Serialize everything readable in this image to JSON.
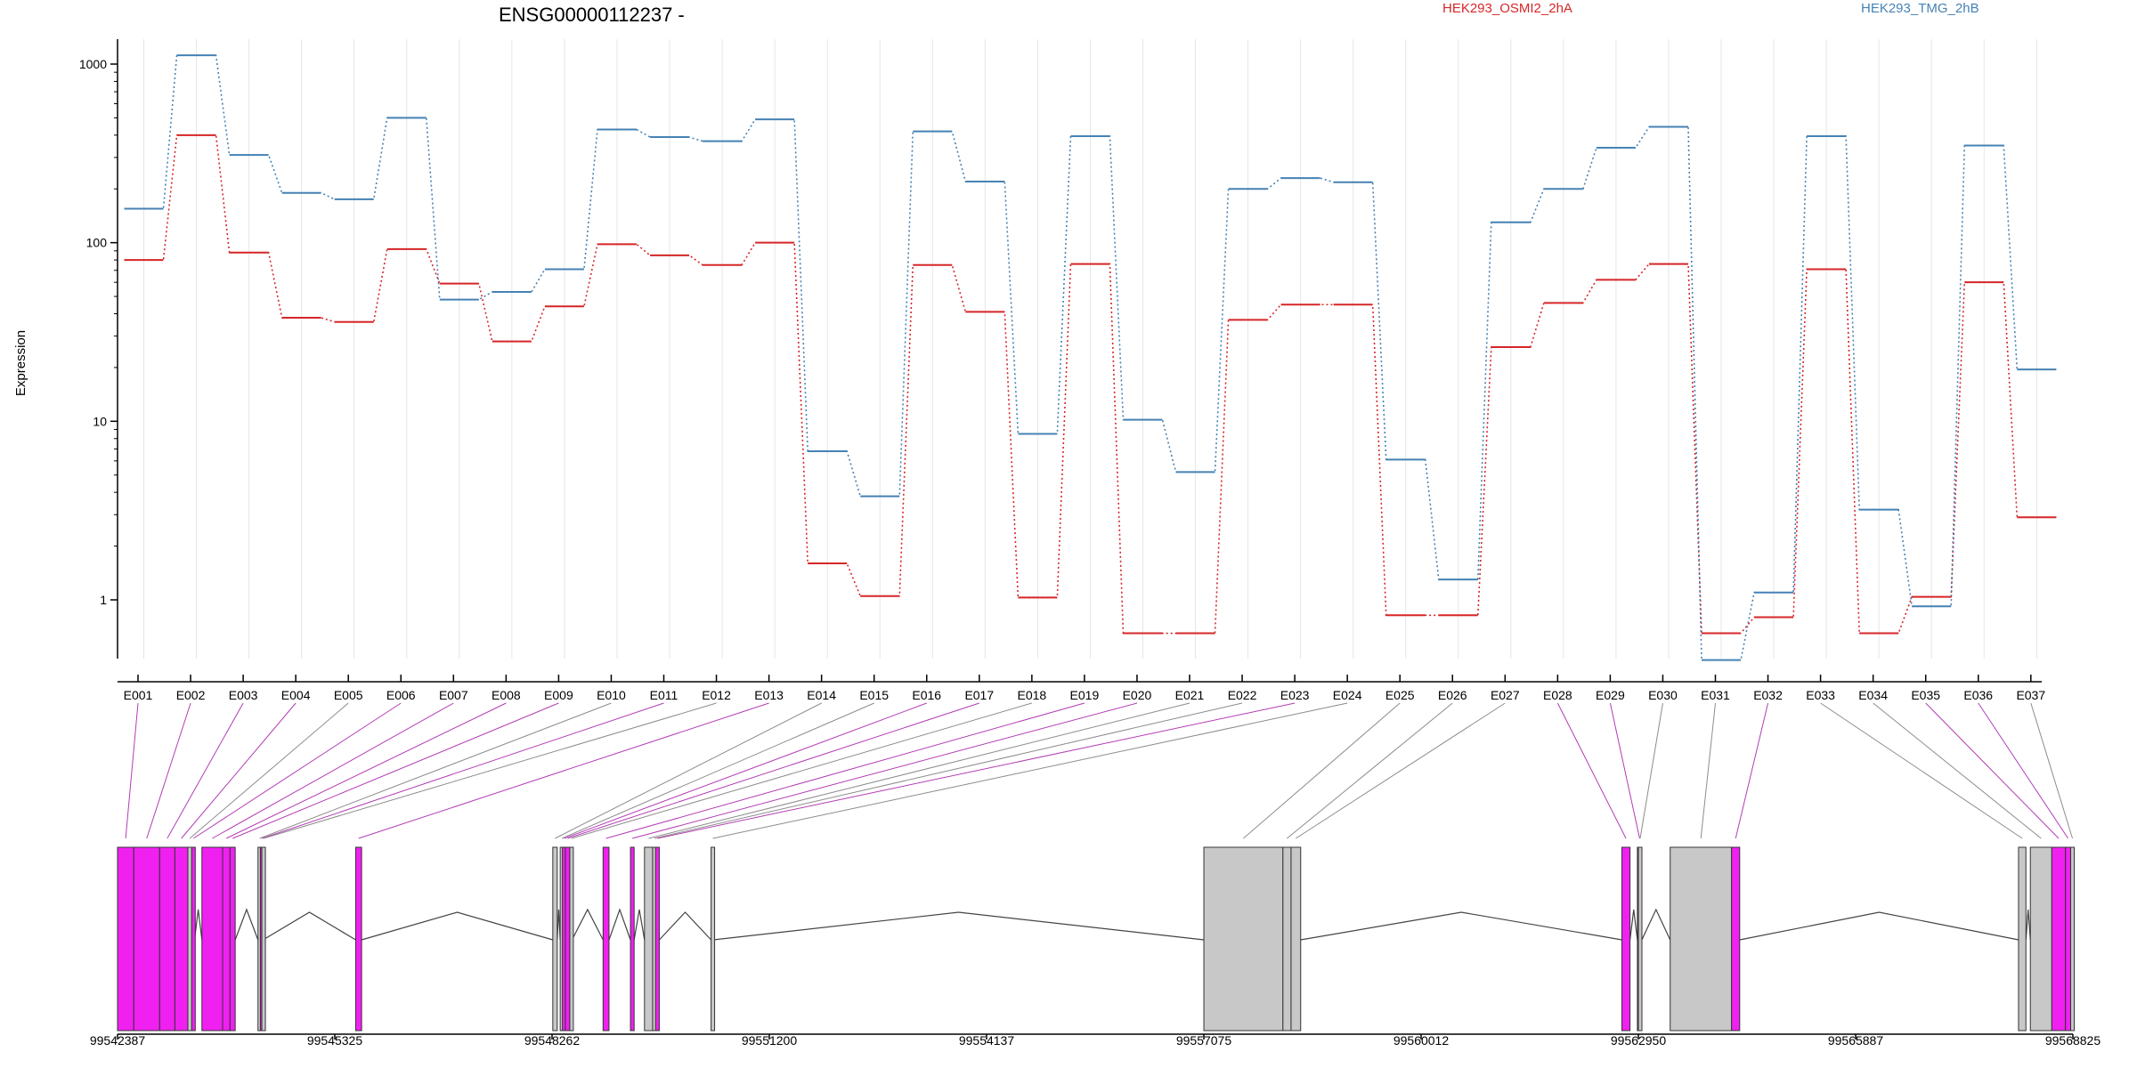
{
  "chart_data": {
    "type": "line",
    "title": "ENSG00000112237 -",
    "ylabel": "Expression",
    "yscale": "log",
    "ylim": [
      0.4,
      1300
    ],
    "yticks": [
      1,
      10,
      100,
      1000
    ],
    "ytick_labels": [
      "1",
      "10",
      "100",
      "1000"
    ],
    "grid": "vertical",
    "legend_position": "top",
    "categories": [
      "E001",
      "E002",
      "E003",
      "E004",
      "E005",
      "E006",
      "E007",
      "E008",
      "E009",
      "E010",
      "E011",
      "E012",
      "E013",
      "E014",
      "E015",
      "E016",
      "E017",
      "E018",
      "E019",
      "E020",
      "E021",
      "E022",
      "E023",
      "E024",
      "E025",
      "E026",
      "E027",
      "E028",
      "E029",
      "E030",
      "E031",
      "E032",
      "E033",
      "E034",
      "E035",
      "E036",
      "E037"
    ],
    "series": [
      {
        "name": "HEK293_OSMI2_2hA",
        "color": "#d62728",
        "values": [
          80,
          400,
          88,
          38,
          36,
          92,
          59,
          28,
          44,
          98,
          85,
          75,
          100,
          1.6,
          1.05,
          75,
          41,
          1.03,
          76,
          0.65,
          0.65,
          37,
          45,
          45,
          0.82,
          0.82,
          26,
          46,
          62,
          76,
          0.65,
          0.8,
          71,
          0.65,
          1.04,
          60,
          2.9
        ]
      },
      {
        "name": "HEK293_TMG_2hB",
        "color": "#4682b4",
        "values": [
          155,
          1120,
          310,
          190,
          175,
          500,
          48,
          53,
          71,
          430,
          390,
          370,
          490,
          6.8,
          3.8,
          420,
          220,
          8.5,
          395,
          10.2,
          5.2,
          200,
          230,
          218,
          6.1,
          1.3,
          130,
          200,
          340,
          445,
          0.46,
          1.1,
          395,
          3.2,
          0.92,
          350,
          19.5
        ]
      }
    ],
    "gene_model": {
      "genomic_ticks": [
        "99542387",
        "99545325",
        "99548262",
        "99551200",
        "99554137",
        "99557075",
        "99560012",
        "99562950",
        "99565887",
        "99568825"
      ],
      "genomic_range": [
        99542387,
        99568825
      ],
      "exon_spans": [
        [
          99542387,
          99542607
        ],
        [
          99542607,
          99542957
        ],
        [
          99542957,
          99543162
        ],
        [
          99543162,
          99543338
        ],
        [
          99543338,
          99543390
        ],
        [
          99543390,
          99543428
        ],
        [
          99543528,
          99543808
        ],
        [
          99543808,
          99543908
        ],
        [
          99543908,
          99543978
        ],
        [
          99544286,
          99544318
        ],
        [
          99544318,
          99544338
        ],
        [
          99544338,
          99544355
        ],
        [
          99545607,
          99545687
        ],
        [
          99548272,
          99548332
        ],
        [
          99548372,
          99548402
        ],
        [
          99548402,
          99548442
        ],
        [
          99548442,
          99548502
        ],
        [
          99548502,
          99548532
        ],
        [
          99548952,
          99549032
        ],
        [
          99549322,
          99549372
        ],
        [
          99549512,
          99549622
        ],
        [
          99549622,
          99549662
        ],
        [
          99549662,
          99549712
        ],
        [
          99550412,
          99550442
        ],
        [
          99557075,
          99558144
        ],
        [
          99558144,
          99558254
        ],
        [
          99558254,
          99558384
        ],
        [
          99562727,
          99562837
        ],
        [
          99562937,
          99562997
        ],
        [
          99562997,
          99562950
        ],
        [
          99563380,
          99564210
        ],
        [
          99564210,
          99564320
        ],
        [
          99568090,
          99568190
        ],
        [
          99568250,
          99568540
        ],
        [
          99568540,
          99568725
        ],
        [
          99568725,
          99568795
        ],
        [
          99568795,
          99568825
        ]
      ],
      "exon_colors": [
        "magenta",
        "magenta",
        "magenta",
        "magenta",
        "grey",
        "magenta",
        "magenta",
        "magenta",
        "magenta",
        "grey",
        "magenta",
        "grey",
        "magenta",
        "grey",
        "grey",
        "magenta",
        "magenta",
        "grey",
        "magenta",
        "magenta",
        "grey",
        "grey",
        "magenta",
        "grey",
        "grey",
        "grey",
        "grey",
        "magenta",
        "magenta",
        "grey",
        "grey",
        "magenta",
        "grey",
        "grey",
        "magenta",
        "magenta",
        "grey"
      ],
      "colors": {
        "magenta": "#f020f0",
        "grey": "#c8c8c8"
      }
    }
  }
}
